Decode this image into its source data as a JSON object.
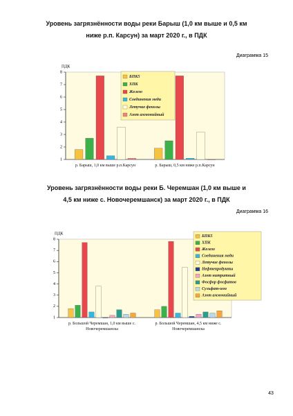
{
  "chart_data": [
    {
      "type": "bar",
      "title": "Уровень загрязнённости воды реки Барыш (1,0 км выше и 0,5 км ниже р.п. Карсун) за март 2020 г., в ПДК",
      "caption": "Диаграмма 15",
      "y_label": "ПДК",
      "categories": [
        "р. Барыш, 1,0 км выше р.п.Карсун",
        "р. Барыш, 0,5 км ниже р.п.Карсун"
      ],
      "ylim": [
        1,
        8
      ],
      "yticks": [
        1,
        2,
        3,
        4,
        5,
        6,
        7,
        8
      ],
      "series": [
        {
          "name": "БПК5",
          "color": "#f5c242",
          "values": [
            1.8,
            1.9
          ]
        },
        {
          "name": "ХПК",
          "color": "#3cb14a",
          "values": [
            2.7,
            2.5
          ]
        },
        {
          "name": "Железо",
          "color": "#e8474b",
          "values": [
            7.7,
            7.7
          ]
        },
        {
          "name": "Соединения меди",
          "color": "#35b7e0",
          "values": [
            1.3,
            1.1
          ]
        },
        {
          "name": "Летучие фенолы",
          "color": "#fffde0",
          "values": [
            3.6,
            3.2
          ]
        },
        {
          "name": "Азот аммонийный",
          "color": "#f08080",
          "values": [
            1.1,
            1.0
          ]
        }
      ]
    },
    {
      "type": "bar",
      "title": "Уровень загрязнённости воды реки Б. Черемшан (1,0 км выше и 4,5 км ниже с. Новочеремшанск) за март 2020 г., в ПДК",
      "caption": "Диаграмма 16",
      "y_label": "ПДК",
      "categories": [
        "р. Большой Черемшан, 1,0 км выше с. Новочеремшанска",
        "р. Большой Черемшан, 4,5 км ниже с. Новочеремшанска"
      ],
      "ylim": [
        1,
        8
      ],
      "yticks": [
        1,
        2,
        3,
        4,
        5,
        6,
        7,
        8
      ],
      "series": [
        {
          "name": "БПК5",
          "color": "#f5c242",
          "values": [
            1.8,
            1.7
          ]
        },
        {
          "name": "ХПК",
          "color": "#3cb14a",
          "values": [
            2.1,
            2.0
          ]
        },
        {
          "name": "Железо",
          "color": "#e8474b",
          "values": [
            7.7,
            7.8
          ]
        },
        {
          "name": "Соединения меди",
          "color": "#35b7e0",
          "values": [
            1.5,
            1.4
          ]
        },
        {
          "name": "Летучие фенолы",
          "color": "#fffde0",
          "values": [
            3.8,
            5.5
          ]
        },
        {
          "name": "Нефтепродукты",
          "color": "#1c3f9e",
          "values": [
            1.0,
            1.1
          ]
        },
        {
          "name": "Азот нитритный",
          "color": "#f4a6c8",
          "values": [
            1.2,
            1.3
          ]
        },
        {
          "name": "Фосфор фосфатов",
          "color": "#2a9d8f",
          "values": [
            1.7,
            1.5
          ]
        },
        {
          "name": "Сульфат-ион",
          "color": "#b7d9ea",
          "values": [
            1.3,
            1.4
          ]
        },
        {
          "name": "Азот аммонийный",
          "color": "#f6a63a",
          "values": [
            1.4,
            1.6
          ]
        }
      ]
    }
  ],
  "page_number": "43"
}
